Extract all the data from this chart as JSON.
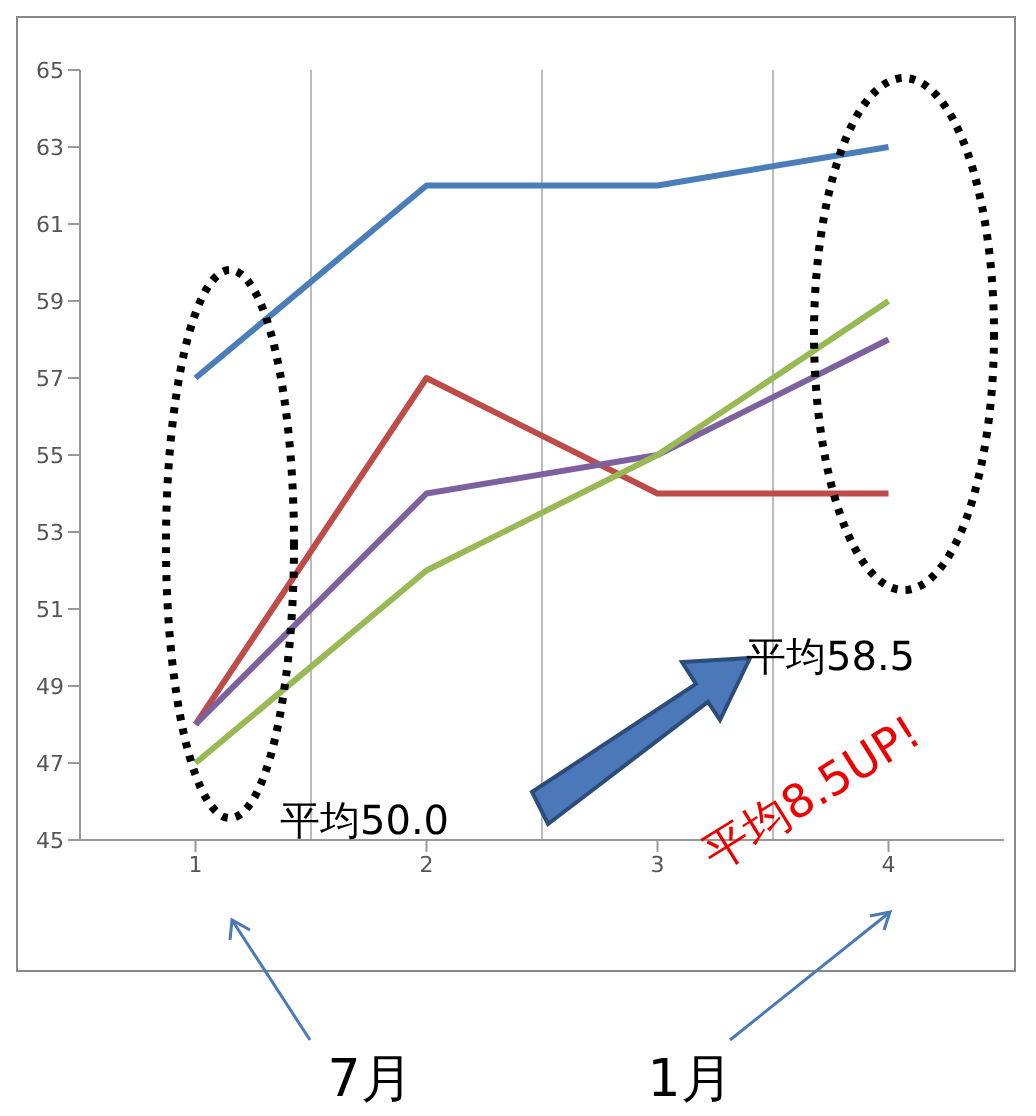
{
  "chart_data": {
    "type": "line",
    "categories": [
      "1",
      "2",
      "3",
      "4"
    ],
    "series": [
      {
        "color": "#4a7ebb",
        "values": [
          57,
          62,
          62,
          63
        ]
      },
      {
        "color": "#be4b48",
        "values": [
          48,
          57,
          54,
          54
        ]
      },
      {
        "color": "#7d60a0",
        "values": [
          48,
          54,
          55,
          58
        ]
      },
      {
        "color": "#98b954",
        "values": [
          47,
          52,
          55,
          59
        ]
      }
    ],
    "ylim": [
      45,
      65
    ],
    "yticks": [
      45,
      47,
      49,
      51,
      53,
      55,
      57,
      59,
      61,
      63,
      65
    ],
    "grid": "x",
    "marker": "none",
    "line_style": "solid",
    "legend": false,
    "annotations": [
      "平均50.0",
      "平均58.5",
      "平均8.5UP!",
      "7月",
      "1月"
    ]
  }
}
